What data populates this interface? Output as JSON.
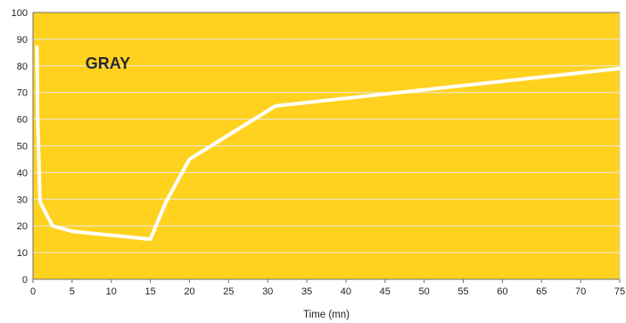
{
  "chart_data": {
    "type": "line",
    "title": "",
    "xlabel": "Time (mn)",
    "ylabel": "",
    "xlim": [
      0,
      75
    ],
    "ylim": [
      0,
      100
    ],
    "x_ticks": [
      0,
      5,
      10,
      15,
      20,
      25,
      30,
      35,
      40,
      45,
      50,
      55,
      60,
      65,
      70,
      75
    ],
    "y_ticks": [
      0,
      10,
      20,
      30,
      40,
      50,
      60,
      70,
      80,
      90,
      100
    ],
    "grid": true,
    "legend": "none",
    "annotation": "GRAY",
    "background_color": "#FFD21F",
    "line_color": "#FFFFFF",
    "series": [
      {
        "x": [
          0.5,
          0.6,
          0.9,
          2.5,
          5,
          15,
          17,
          20,
          31,
          75
        ],
        "y": [
          87,
          60,
          29,
          20,
          18,
          15,
          29,
          45,
          65,
          79
        ]
      }
    ]
  }
}
